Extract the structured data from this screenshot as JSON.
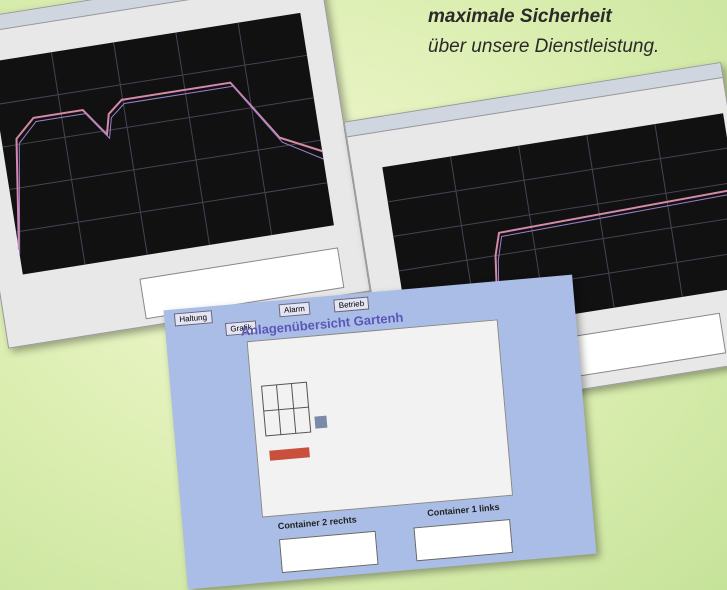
{
  "heading": {
    "line1": "maximale Sicherheit",
    "line2": "über unsere Dienstleistung."
  },
  "overview": {
    "title": "Anlagenübersicht Gartenh",
    "tabs": [
      "Haltung",
      "Alarm",
      "Betrieb"
    ],
    "subtab": "Grafik",
    "container_right": "Container 2 rechts",
    "container_left": "Container 1 links"
  }
}
